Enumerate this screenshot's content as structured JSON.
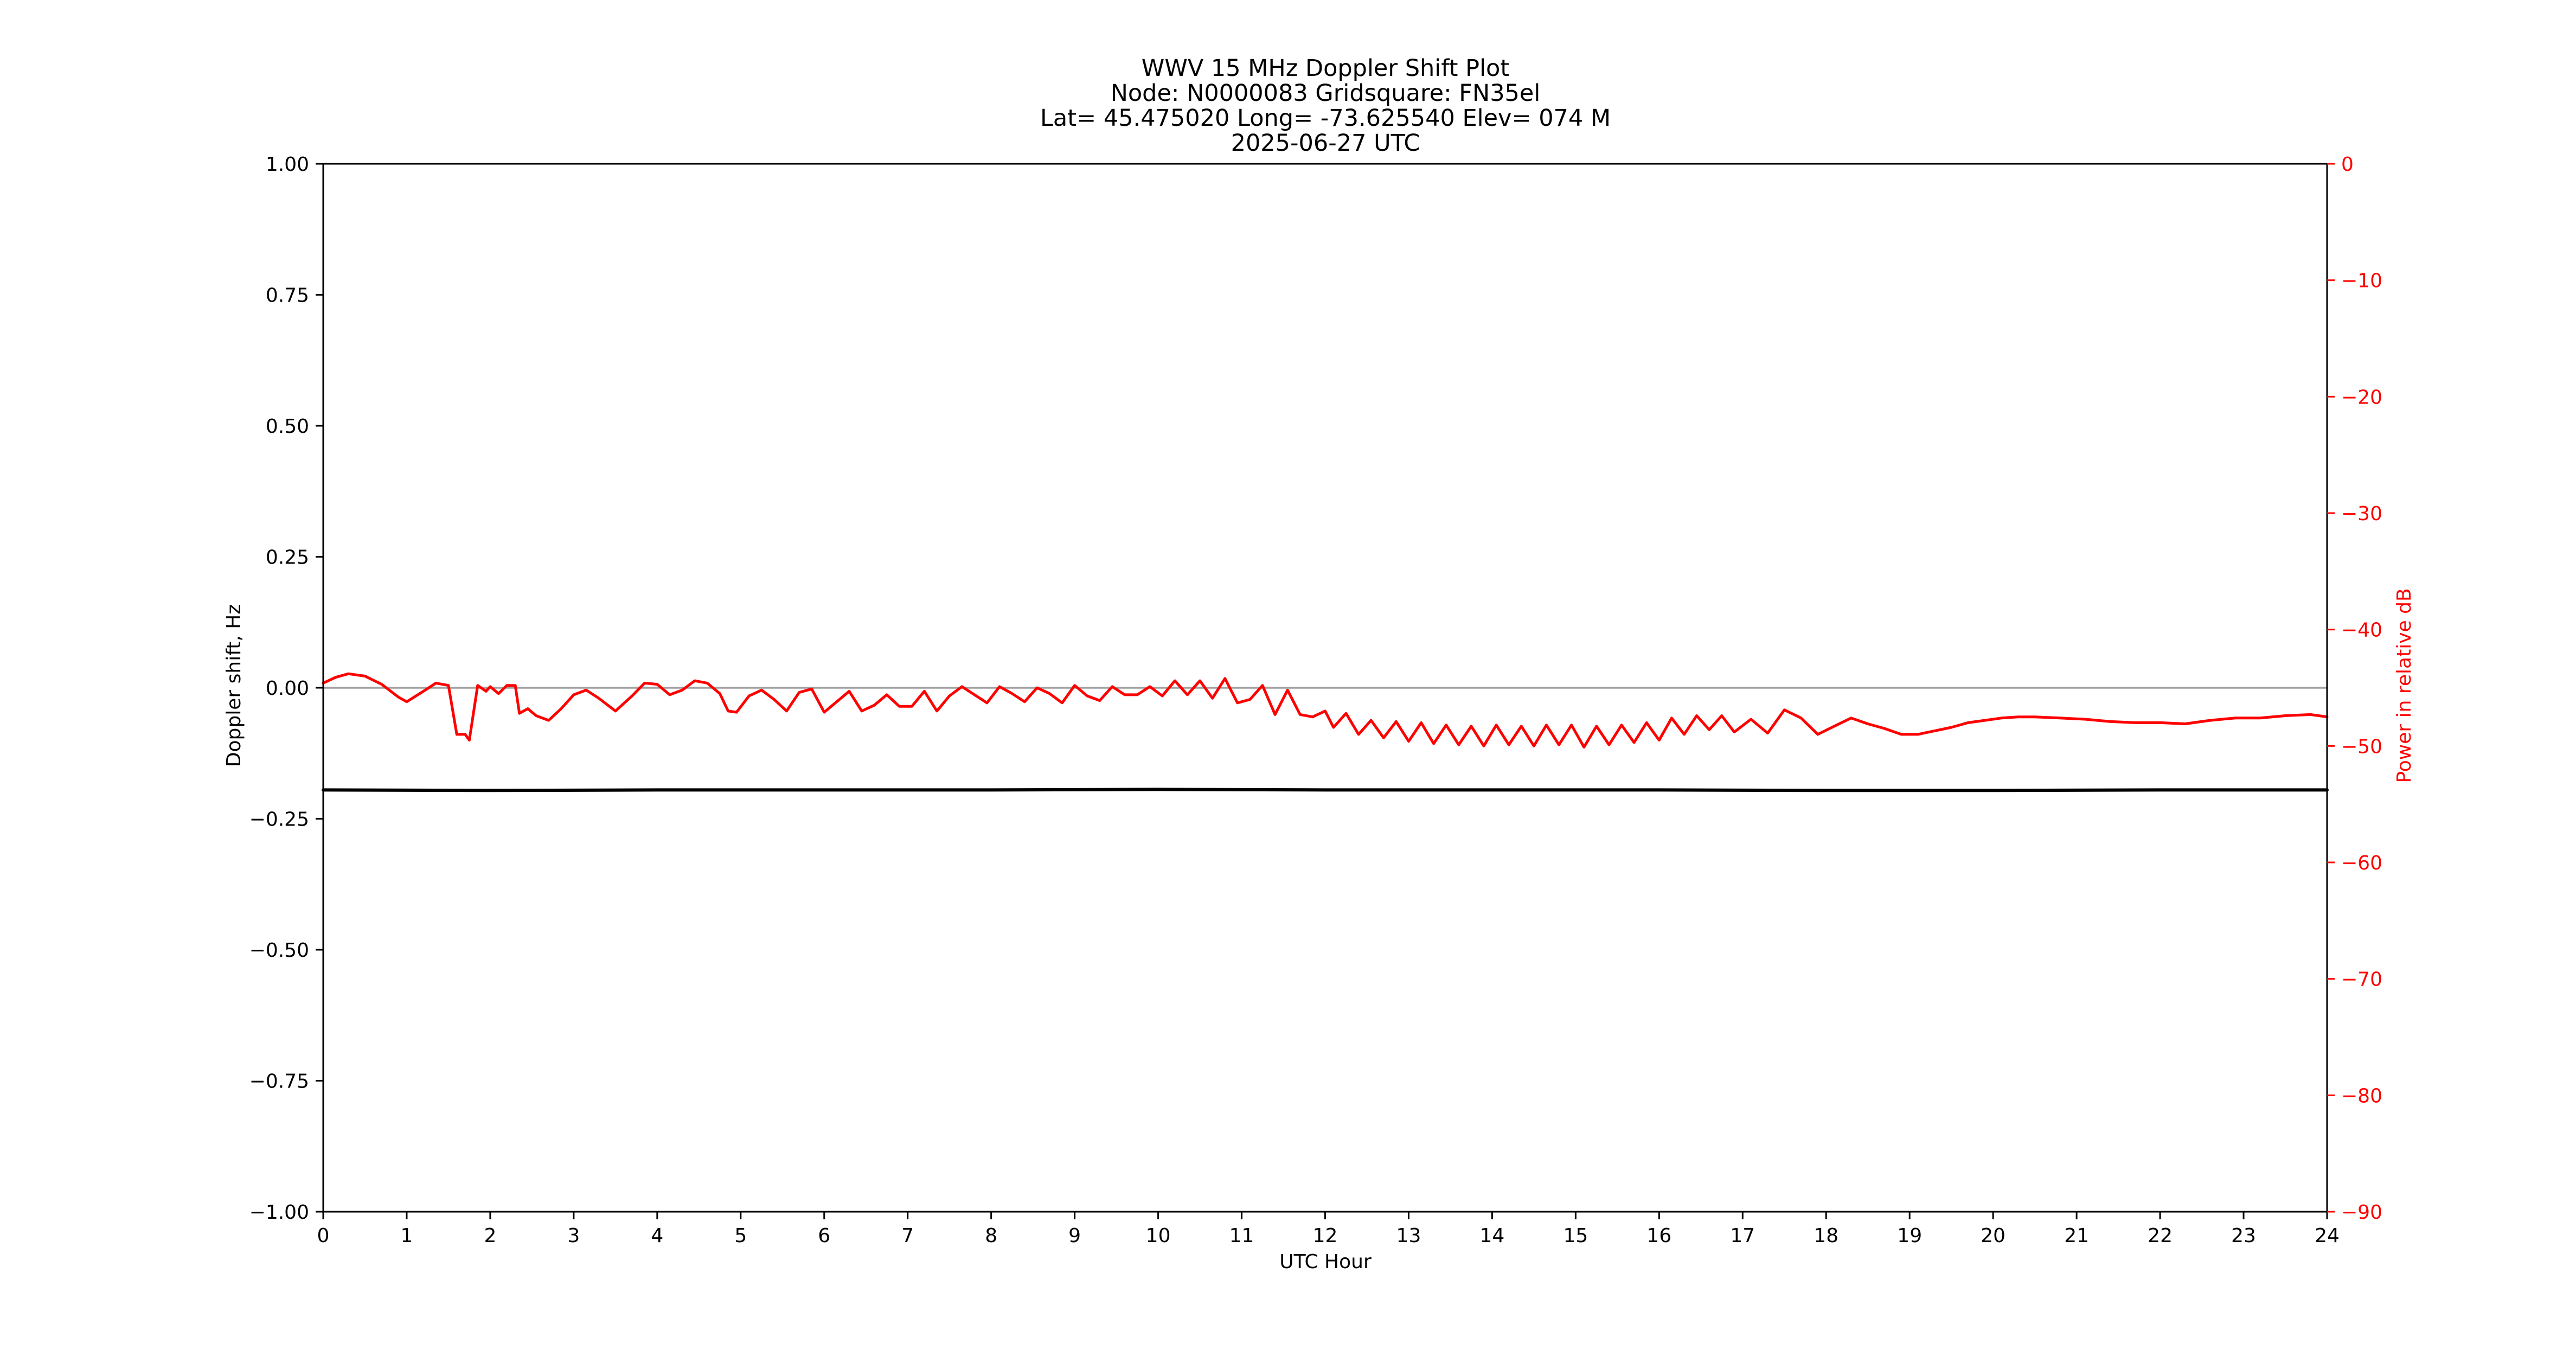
{
  "chart_data": {
    "type": "line",
    "title_lines": [
      "WWV 15 MHz Doppler Shift Plot",
      "Node:  N0000083     Gridsquare:  FN35el",
      "Lat= 45.475020    Long= -73.625540    Elev= 074 M",
      "2025-06-27  UTC"
    ],
    "xlabel": "UTC Hour",
    "ylabel": "Doppler shift, Hz",
    "ylabel_right": "Power in relative dB",
    "xlim": [
      0,
      24
    ],
    "ylim": [
      -1.0,
      1.0
    ],
    "ylim_right": [
      -90,
      0
    ],
    "x_ticks": [
      0,
      1,
      2,
      3,
      4,
      5,
      6,
      7,
      8,
      9,
      10,
      11,
      12,
      13,
      14,
      15,
      16,
      17,
      18,
      19,
      20,
      21,
      22,
      23,
      24
    ],
    "x_tick_labels": [
      "0",
      "1",
      "2",
      "3",
      "4",
      "5",
      "6",
      "7",
      "8",
      "9",
      "10",
      "11",
      "12",
      "13",
      "14",
      "15",
      "16",
      "17",
      "18",
      "19",
      "20",
      "21",
      "22",
      "23",
      "24"
    ],
    "y_ticks": [
      1.0,
      0.75,
      0.5,
      0.25,
      0.0,
      -0.25,
      -0.5,
      -0.75,
      -1.0
    ],
    "y_tick_labels": [
      "1.00",
      "0.75",
      "0.50",
      "0.25",
      "0.00",
      "−0.25",
      "−0.50",
      "−0.75",
      "−1.00"
    ],
    "y_right_ticks": [
      0,
      -10,
      -20,
      -30,
      -40,
      -50,
      -60,
      -70,
      -80,
      -90
    ],
    "y_right_tick_labels": [
      "0",
      "−10",
      "−20",
      "−30",
      "−40",
      "−50",
      "−60",
      "−70",
      "−80",
      "−90"
    ],
    "reference_line": {
      "y": 0.0,
      "color": "#a0a0a0"
    },
    "grid": false,
    "series": [
      {
        "axis": "left",
        "color": "#000000",
        "x": [
          0,
          2,
          4,
          6,
          8,
          10,
          12,
          14,
          16,
          18,
          20,
          22,
          24
        ],
        "y": [
          -0.195,
          -0.196,
          -0.195,
          -0.195,
          -0.195,
          -0.194,
          -0.195,
          -0.195,
          -0.195,
          -0.196,
          -0.196,
          -0.195,
          -0.195
        ]
      },
      {
        "axis": "right",
        "color": "#ff0000",
        "x": [
          0,
          0.15,
          0.3,
          0.5,
          0.7,
          0.9,
          1.0,
          1.2,
          1.35,
          1.5,
          1.6,
          1.7,
          1.75,
          1.85,
          1.95,
          2.0,
          2.1,
          2.2,
          2.3,
          2.35,
          2.45,
          2.55,
          2.7,
          2.85,
          3.0,
          3.15,
          3.3,
          3.5,
          3.7,
          3.85,
          4.0,
          4.15,
          4.3,
          4.45,
          4.6,
          4.75,
          4.85,
          4.95,
          5.1,
          5.25,
          5.4,
          5.55,
          5.7,
          5.85,
          6.0,
          6.15,
          6.3,
          6.45,
          6.6,
          6.75,
          6.9,
          7.05,
          7.2,
          7.35,
          7.5,
          7.65,
          7.8,
          7.95,
          8.1,
          8.25,
          8.4,
          8.55,
          8.7,
          8.85,
          9.0,
          9.15,
          9.3,
          9.45,
          9.6,
          9.75,
          9.9,
          10.05,
          10.2,
          10.35,
          10.5,
          10.65,
          10.8,
          10.95,
          11.1,
          11.25,
          11.4,
          11.55,
          11.7,
          11.85,
          12.0,
          12.1,
          12.25,
          12.4,
          12.55,
          12.7,
          12.85,
          13.0,
          13.15,
          13.3,
          13.45,
          13.6,
          13.75,
          13.9,
          14.05,
          14.2,
          14.35,
          14.5,
          14.65,
          14.8,
          14.95,
          15.1,
          15.25,
          15.4,
          15.55,
          15.7,
          15.85,
          16.0,
          16.15,
          16.3,
          16.45,
          16.6,
          16.75,
          16.9,
          17.1,
          17.3,
          17.5,
          17.7,
          17.9,
          18.1,
          18.3,
          18.5,
          18.7,
          18.9,
          19.1,
          19.3,
          19.5,
          19.7,
          19.9,
          20.1,
          20.3,
          20.5,
          20.8,
          21.1,
          21.4,
          21.7,
          22.0,
          22.3,
          22.6,
          22.9,
          23.2,
          23.5,
          23.8,
          24.0
        ],
        "y": [
          -44.6,
          -44.1,
          -43.8,
          -44.0,
          -44.7,
          -45.8,
          -46.2,
          -45.3,
          -44.6,
          -44.8,
          -49.0,
          -49.0,
          -49.5,
          -44.8,
          -45.3,
          -44.9,
          -45.5,
          -44.8,
          -44.8,
          -47.2,
          -46.8,
          -47.4,
          -47.8,
          -46.8,
          -45.6,
          -45.2,
          -45.9,
          -47.0,
          -45.7,
          -44.6,
          -44.7,
          -45.6,
          -45.2,
          -44.4,
          -44.6,
          -45.5,
          -47.0,
          -47.1,
          -45.7,
          -45.2,
          -46.0,
          -47.0,
          -45.4,
          -45.1,
          -47.1,
          -46.2,
          -45.3,
          -47.0,
          -46.5,
          -45.6,
          -46.6,
          -46.6,
          -45.3,
          -47.0,
          -45.7,
          -44.9,
          -45.6,
          -46.3,
          -44.9,
          -45.5,
          -46.2,
          -45.0,
          -45.5,
          -46.3,
          -44.8,
          -45.7,
          -46.1,
          -44.9,
          -45.6,
          -45.6,
          -44.9,
          -45.7,
          -44.4,
          -45.6,
          -44.4,
          -45.9,
          -44.2,
          -46.3,
          -46.0,
          -44.8,
          -47.3,
          -45.2,
          -47.3,
          -47.5,
          -47.0,
          -48.4,
          -47.2,
          -49.0,
          -47.8,
          -49.3,
          -47.9,
          -49.6,
          -48.0,
          -49.8,
          -48.2,
          -49.9,
          -48.3,
          -50.0,
          -48.2,
          -49.9,
          -48.3,
          -50.0,
          -48.2,
          -49.9,
          -48.2,
          -50.1,
          -48.3,
          -49.9,
          -48.2,
          -49.7,
          -48.0,
          -49.5,
          -47.6,
          -49.0,
          -47.4,
          -48.6,
          -47.4,
          -48.8,
          -47.7,
          -48.9,
          -46.9,
          -47.6,
          -49.0,
          -48.3,
          -47.6,
          -48.1,
          -48.5,
          -49.0,
          -49.0,
          -48.7,
          -48.4,
          -48.0,
          -47.8,
          -47.6,
          -47.5,
          -47.5,
          -47.6,
          -47.7,
          -47.9,
          -48.0,
          -48.0,
          -48.1,
          -47.8,
          -47.6,
          -47.6,
          -47.4,
          -47.3,
          -47.5
        ]
      }
    ]
  }
}
